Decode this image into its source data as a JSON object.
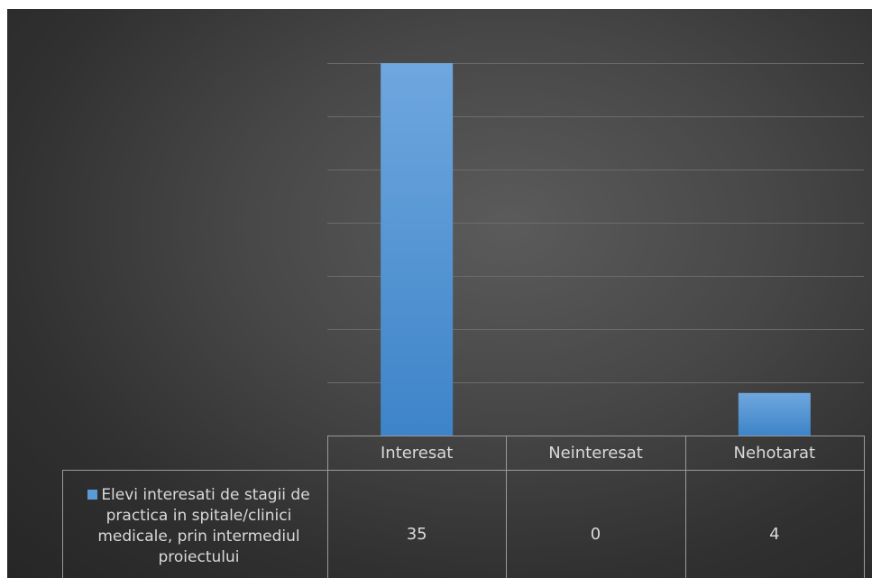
{
  "chart_data": {
    "type": "bar",
    "categories": [
      "Interesat",
      "Neinteresat",
      "Nehotarat"
    ],
    "series": [
      {
        "name": "Elevi interesati de stagii de practica in spitale/clinici medicale, prin intermediul proiectului",
        "values": [
          35,
          0,
          4
        ],
        "color": "#5b9bd5"
      }
    ],
    "ylim": [
      0,
      35
    ],
    "gridline_step": 5,
    "grid": true,
    "legend": "data-table",
    "title": "",
    "xlabel": "",
    "ylabel": ""
  },
  "colors": {
    "bar_top": "#6fa7df",
    "bar_bottom": "#3d84c8",
    "gridline": "#6b6b6b",
    "table_border": "#9a9a9a",
    "text": "#d9d9d9"
  }
}
